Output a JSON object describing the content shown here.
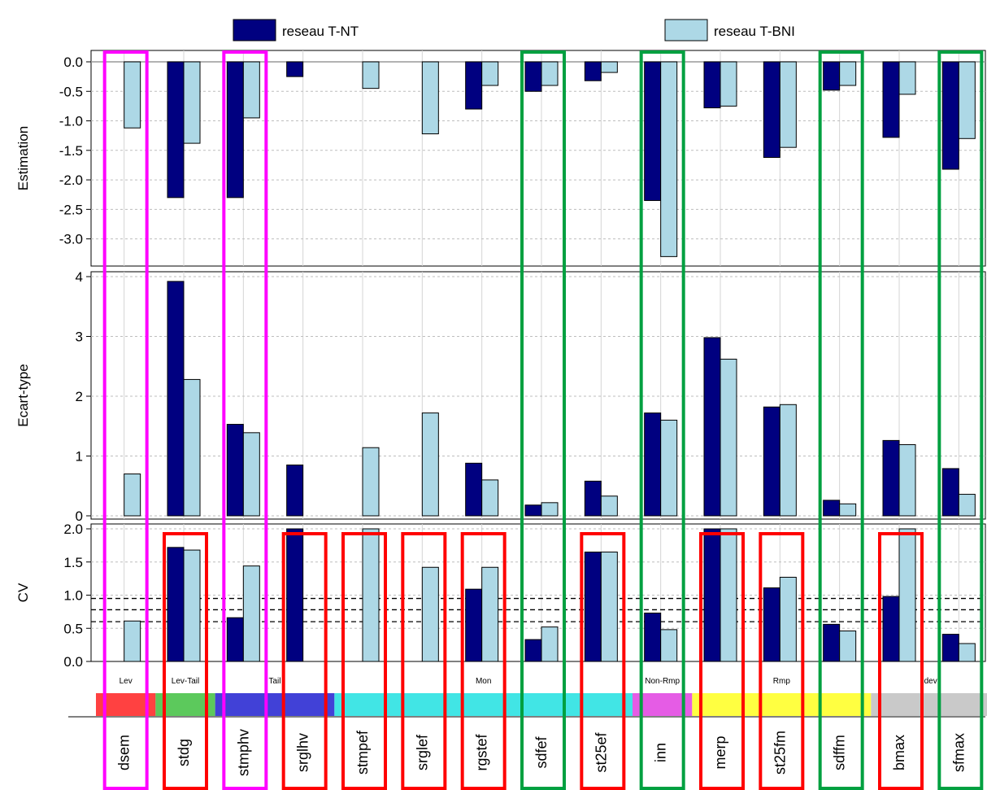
{
  "chart_data": {
    "type": "bar",
    "legend": {
      "placement": "top",
      "entries": [
        {
          "name": "reseau T-NT",
          "color": "#000080"
        },
        {
          "name": "reseau T-BNI",
          "color": "#add8e6"
        }
      ]
    },
    "categories": [
      "dsem",
      "stdg",
      "stmphv",
      "srglhv",
      "stmpef",
      "srglef",
      "rgstef",
      "sdfef",
      "st25ef",
      "inn",
      "merp",
      "st25fm",
      "sdffm",
      "bmax",
      "sfmax"
    ],
    "groups": [
      {
        "label": "Lev",
        "color": "#ff2020",
        "from": 0,
        "to": 0
      },
      {
        "label": "Lev-Tail",
        "color": "#40c040",
        "from": 1,
        "to": 1
      },
      {
        "label": "Tail",
        "color": "#2020d0",
        "from": 2,
        "to": 3
      },
      {
        "label": "Mon",
        "color": "#20e0e0",
        "from": 4,
        "to": 8
      },
      {
        "label": "Non-Rmp",
        "color": "#e040e0",
        "from": 9,
        "to": 9
      },
      {
        "label": "Rmp",
        "color": "#ffff20",
        "from": 10,
        "to": 12
      },
      {
        "label": "dev",
        "color": "#c0c0c0",
        "from": 13,
        "to": 14
      }
    ],
    "panels": [
      {
        "ylabel": "Estimation",
        "ylim": [
          -3.35,
          0.0
        ],
        "ticks": [
          0.0,
          -0.5,
          -1.0,
          -1.5,
          -2.0,
          -2.5,
          -3.0
        ],
        "tick_labels": [
          "0.0",
          "-0.5",
          "-1.0",
          "-1.5",
          "-2.0",
          "-2.5",
          "-3.0"
        ],
        "grid": true,
        "series": [
          {
            "name": "reseau T-NT",
            "values": [
              null,
              -2.3,
              -2.3,
              -0.25,
              null,
              null,
              -0.8,
              -0.5,
              -0.32,
              -2.35,
              -0.78,
              -1.62,
              -0.48,
              -1.28,
              -1.82
            ]
          },
          {
            "name": "reseau T-BNI",
            "values": [
              -1.12,
              -1.38,
              -0.95,
              null,
              -0.45,
              -1.22,
              -0.4,
              -0.4,
              -0.18,
              -3.3,
              -0.75,
              -1.45,
              -0.4,
              -0.55,
              -1.3
            ]
          }
        ]
      },
      {
        "ylabel": "Ecart-type",
        "ylim": [
          0,
          4.0
        ],
        "ticks": [
          0,
          1,
          2,
          3,
          4
        ],
        "tick_labels": [
          "0",
          "1",
          "2",
          "3",
          "4"
        ],
        "grid": true,
        "series": [
          {
            "name": "reseau T-NT",
            "values": [
              null,
              3.92,
              1.53,
              0.85,
              null,
              null,
              0.88,
              0.18,
              0.58,
              1.72,
              2.98,
              1.82,
              0.26,
              1.26,
              0.79
            ]
          },
          {
            "name": "reseau T-BNI",
            "values": [
              0.7,
              2.28,
              1.39,
              null,
              1.14,
              1.72,
              0.6,
              0.22,
              0.33,
              1.6,
              2.62,
              1.86,
              0.2,
              1.19,
              0.36
            ]
          }
        ]
      },
      {
        "ylabel": "CV",
        "ylim": [
          0,
          2.0
        ],
        "ticks": [
          0.0,
          0.5,
          1.0,
          1.5,
          2.0
        ],
        "tick_labels": [
          "0.0",
          "0.5",
          "1.0",
          "1.5",
          "2.0"
        ],
        "grid": true,
        "reference_lines": [
          0.6,
          0.78,
          0.95
        ],
        "series": [
          {
            "name": "reseau T-NT",
            "values": [
              null,
              1.72,
              0.66,
              2.0,
              null,
              null,
              1.09,
              0.33,
              1.65,
              0.73,
              2.0,
              1.11,
              0.56,
              0.98,
              0.41
            ]
          },
          {
            "name": "reseau T-BNI",
            "values": [
              0.61,
              1.68,
              1.44,
              null,
              2.0,
              1.42,
              1.42,
              0.52,
              1.65,
              0.48,
              2.0,
              1.27,
              0.46,
              2.0,
              0.27
            ]
          }
        ]
      }
    ],
    "highlight_boxes": [
      {
        "color": "#ff00ff",
        "kind": "full",
        "categories": [
          0,
          2
        ]
      },
      {
        "color": "#00a040",
        "kind": "full",
        "categories": [
          7,
          9,
          12,
          14
        ]
      },
      {
        "color": "#ff0000",
        "kind": "lower",
        "categories": [
          1,
          3,
          4,
          5,
          6,
          8,
          10,
          11,
          13
        ]
      }
    ]
  }
}
